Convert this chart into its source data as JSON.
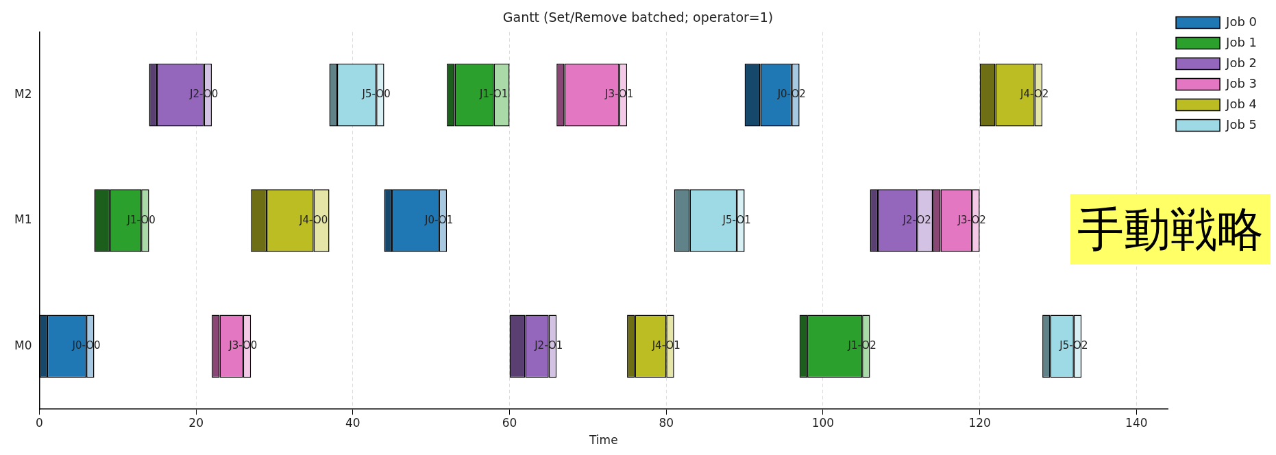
{
  "chart_data": {
    "type": "bar",
    "orientation": "horizontal",
    "title": "Gantt (Set/Remove batched; operator=1)",
    "xlabel": "Time",
    "categories": [
      "M2",
      "M1",
      "M0"
    ],
    "series": [
      {
        "color": "#16486c",
        "base": [
          90,
          44,
          0
        ],
        "values": [
          2,
          1,
          1
        ]
      },
      {
        "name": "Job 0",
        "color": "#1f77b4",
        "base": [
          92,
          45,
          1
        ],
        "values": [
          4,
          6,
          5
        ]
      },
      {
        "color": "#a6c8e1",
        "base": [
          96,
          51,
          6
        ],
        "values": [
          1,
          1,
          1
        ]
      },
      {
        "color": "#1c5e1c",
        "base": [
          52,
          7,
          97
        ],
        "values": [
          1,
          2,
          1
        ]
      },
      {
        "name": "Job 1",
        "color": "#2ca02c",
        "base": [
          53,
          9,
          98
        ],
        "values": [
          5,
          4,
          7
        ]
      },
      {
        "color": "#abdaa9",
        "base": [
          58,
          13,
          105
        ],
        "values": [
          2,
          1,
          1
        ]
      },
      {
        "color": "#5a3f72",
        "base": [
          14,
          106,
          60
        ],
        "values": [
          1,
          1,
          2
        ]
      },
      {
        "name": "Job 2",
        "color": "#9467bd",
        "base": [
          15,
          107,
          62
        ],
        "values": [
          6,
          5,
          3
        ]
      },
      {
        "color": "#d4c2e5",
        "base": [
          21,
          112,
          65
        ],
        "values": [
          1,
          2,
          1
        ]
      },
      {
        "color": "#8a4776",
        "base": [
          66,
          114,
          22
        ],
        "values": [
          1,
          1,
          1
        ]
      },
      {
        "name": "Job 3",
        "color": "#e377c2",
        "base": [
          67,
          115,
          23
        ],
        "values": [
          7,
          4,
          3
        ]
      },
      {
        "color": "#f4c9e7",
        "base": [
          74,
          119,
          26
        ],
        "values": [
          1,
          1,
          1
        ]
      },
      {
        "color": "#6e6e14",
        "base": [
          120,
          27,
          75
        ],
        "values": [
          2,
          2,
          1
        ]
      },
      {
        "name": "Job 4",
        "color": "#bcbd22",
        "base": [
          122,
          29,
          76
        ],
        "values": [
          5,
          6,
          4
        ]
      },
      {
        "color": "#e4e5a7",
        "base": [
          127,
          35,
          80
        ],
        "values": [
          1,
          2,
          1
        ]
      },
      {
        "color": "#5f8389",
        "base": [
          37,
          81,
          128
        ],
        "values": [
          1,
          2,
          1
        ]
      },
      {
        "name": "Job 5",
        "color": "#9edae5",
        "base": [
          38,
          83,
          129
        ],
        "values": [
          5,
          6,
          3
        ]
      },
      {
        "color": "#d8eff3",
        "base": [
          43,
          89,
          132
        ],
        "values": [
          1,
          1,
          1
        ]
      }
    ],
    "xlim": [
      0,
      144
    ],
    "xticks": [
      0,
      20,
      40,
      60,
      80,
      100,
      120,
      140
    ],
    "grid": "x",
    "legend": "right",
    "annotations": [
      {
        "text": "J2-O0",
        "x": 21,
        "y": "M2"
      },
      {
        "text": "J5-O0",
        "x": 43,
        "y": "M2"
      },
      {
        "text": "J1-O1",
        "x": 58,
        "y": "M2"
      },
      {
        "text": "J3-O1",
        "x": 74,
        "y": "M2"
      },
      {
        "text": "J0-O2",
        "x": 96,
        "y": "M2"
      },
      {
        "text": "J4-O2",
        "x": 127,
        "y": "M2"
      },
      {
        "text": "J1-O0",
        "x": 13,
        "y": "M1"
      },
      {
        "text": "J4-O0",
        "x": 35,
        "y": "M1"
      },
      {
        "text": "J0-O1",
        "x": 51,
        "y": "M1"
      },
      {
        "text": "J5-O1",
        "x": 89,
        "y": "M1"
      },
      {
        "text": "J2-O2",
        "x": 112,
        "y": "M1"
      },
      {
        "text": "J3-O2",
        "x": 119,
        "y": "M1"
      },
      {
        "text": "J0-O0",
        "x": 6,
        "y": "M0"
      },
      {
        "text": "J3-O0",
        "x": 26,
        "y": "M0"
      },
      {
        "text": "J2-O1",
        "x": 65,
        "y": "M0"
      },
      {
        "text": "J4-O1",
        "x": 80,
        "y": "M0"
      },
      {
        "text": "J1-O2",
        "x": 105,
        "y": "M0"
      },
      {
        "text": "J5-O2",
        "x": 132,
        "y": "M0"
      },
      "手動戦略"
    ]
  }
}
